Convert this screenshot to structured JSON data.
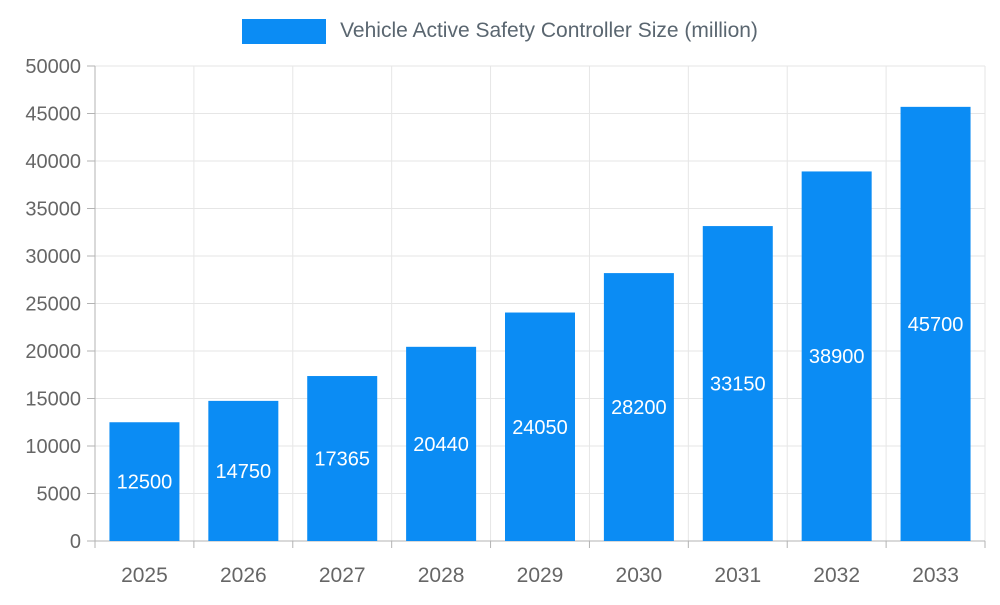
{
  "legend": {
    "label": "Vehicle Active Safety Controller Size (million)"
  },
  "colors": {
    "bar": "#0b8cf4",
    "value_label": "#ffffff",
    "axis_text": "#666666",
    "legend_text": "#5a6670",
    "grid": "#e6e6e6",
    "axis_line": "#b3b3b3"
  },
  "chart_data": {
    "type": "bar",
    "title": "Vehicle Active Safety Controller Size (million)",
    "categories": [
      "2025",
      "2026",
      "2027",
      "2028",
      "2029",
      "2030",
      "2031",
      "2032",
      "2033"
    ],
    "values": [
      12500,
      14750,
      17365,
      20440,
      24050,
      28200,
      33150,
      38900,
      45700
    ],
    "xlabel": "",
    "ylabel": "",
    "ylim": [
      0,
      50000
    ],
    "yticks": [
      0,
      5000,
      10000,
      15000,
      20000,
      25000,
      30000,
      35000,
      40000,
      45000,
      50000
    ],
    "grid": true,
    "legend_position": "top",
    "value_labels": "inside-center"
  }
}
